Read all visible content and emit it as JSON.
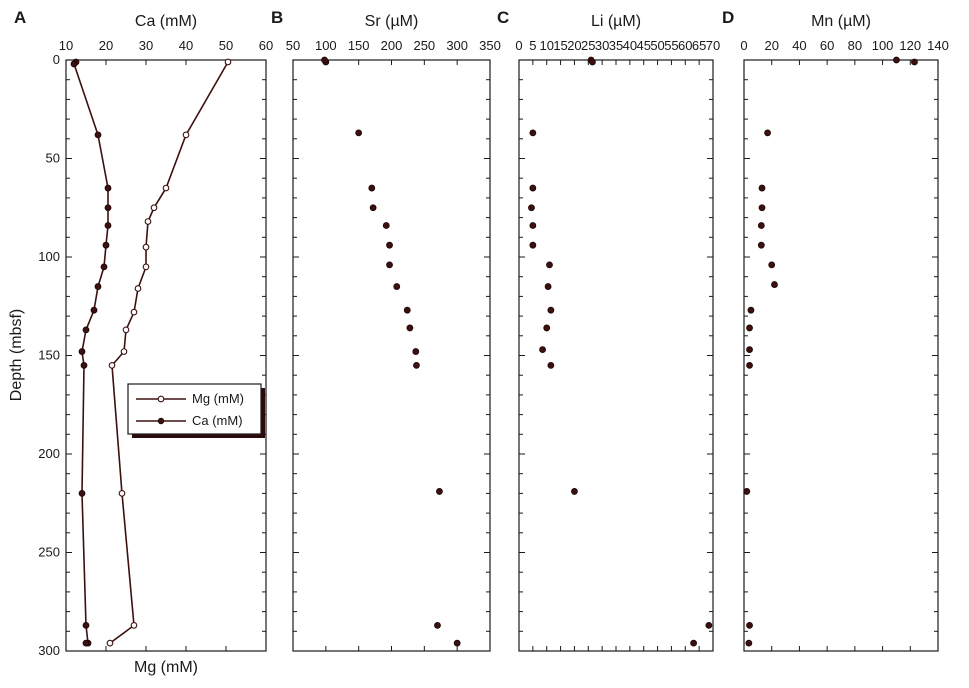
{
  "y_axis": {
    "label": "Depth (mbsf)",
    "ticks": [
      0,
      50,
      100,
      150,
      200,
      250,
      300
    ],
    "range": [
      0,
      300
    ],
    "inverted": true
  },
  "panels": [
    {
      "letter": "A",
      "top_label": "Ca (mM)",
      "bottom_label": "Mg (mM)"
    },
    {
      "letter": "B",
      "top_label": "Sr (µM)"
    },
    {
      "letter": "C",
      "top_label": "Li (µM)"
    },
    {
      "letter": "D",
      "top_label": "Mn (µM)"
    }
  ],
  "legend": {
    "placement": "lower-right of panel A",
    "items": [
      "Mg (mM)",
      "Ca (mM)"
    ]
  },
  "colors": {
    "series": "#3d1010",
    "axis": "#1a1a1a"
  },
  "chart_data": [
    {
      "type": "line",
      "panel": "A",
      "xlabel": "Ca (mM) / Mg (mM)",
      "ylabel": "Depth (mbsf)",
      "xlim": [
        10,
        60
      ],
      "xticks": [
        10,
        20,
        30,
        40,
        50,
        60
      ],
      "ylim": [
        300,
        0
      ],
      "series": [
        {
          "name": "Mg (mM)",
          "marker": "open-circle",
          "x": [
            50.5,
            40,
            35,
            32,
            30.5,
            30,
            30,
            28,
            27,
            25,
            24.5,
            21.5,
            24,
            27,
            21
          ],
          "y": [
            1,
            38,
            65,
            75,
            82,
            95,
            105,
            116,
            128,
            137,
            148,
            155,
            220,
            287,
            296
          ]
        },
        {
          "name": "Ca (mM)",
          "marker": "filled-circle",
          "x": [
            12.5,
            12,
            18,
            20.5,
            20.5,
            20.5,
            20,
            19.5,
            18,
            17,
            15,
            14,
            14.5,
            14,
            15,
            15.5,
            15
          ],
          "y": [
            1,
            2,
            38,
            65,
            75,
            84,
            94,
            105,
            115,
            127,
            137,
            148,
            155,
            220,
            287,
            296,
            296
          ]
        }
      ]
    },
    {
      "type": "scatter",
      "panel": "B",
      "xlabel": "Sr (µM)",
      "xlim": [
        50,
        350
      ],
      "xticks": [
        50,
        100,
        150,
        200,
        250,
        300,
        350
      ],
      "ylim": [
        300,
        0
      ],
      "series": [
        {
          "x": [
            100,
            98,
            150,
            170,
            172,
            192,
            197,
            197,
            208,
            224,
            228,
            237,
            238,
            273,
            270,
            300
          ],
          "y": [
            1,
            0,
            37,
            65,
            75,
            84,
            94,
            104,
            115,
            127,
            136,
            148,
            155,
            219,
            287,
            296
          ]
        }
      ]
    },
    {
      "type": "scatter",
      "panel": "C",
      "xlabel": "Li (µM)",
      "xlim": [
        0,
        70
      ],
      "xticks": [
        0,
        5,
        10,
        15,
        20,
        25,
        30,
        35,
        40,
        45,
        50,
        55,
        60,
        65,
        70
      ],
      "ylim": [
        300,
        0
      ],
      "series": [
        {
          "x": [
            26,
            26.5,
            5,
            5,
            4.5,
            5,
            5,
            11,
            10.5,
            11.5,
            10,
            8.5,
            11.5,
            20,
            68.5,
            63
          ],
          "y": [
            0,
            1,
            37,
            65,
            75,
            84,
            94,
            104,
            115,
            127,
            136,
            147,
            155,
            219,
            287,
            296
          ]
        }
      ]
    },
    {
      "type": "scatter",
      "panel": "D",
      "xlabel": "Mn (µM)",
      "xlim": [
        0,
        140
      ],
      "xticks": [
        0,
        20,
        40,
        60,
        80,
        100,
        120,
        140
      ],
      "ylim": [
        300,
        0
      ],
      "series": [
        {
          "x": [
            110,
            123,
            17,
            13,
            13,
            12.5,
            12.5,
            20,
            22,
            5,
            4,
            4,
            4,
            2,
            4,
            3.5
          ],
          "y": [
            0,
            1,
            37,
            65,
            75,
            84,
            94,
            104,
            114,
            127,
            136,
            147,
            155,
            219,
            287,
            296
          ]
        }
      ]
    }
  ]
}
